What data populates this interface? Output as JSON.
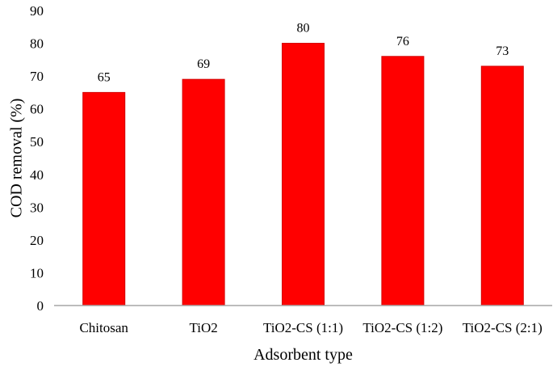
{
  "chart_data": {
    "type": "bar",
    "categories": [
      "Chitosan",
      "TiO2",
      "TiO2-CS (1:1)",
      "TiO2-CS (1:2)",
      "TiO2-CS (2:1)"
    ],
    "values": [
      65,
      69,
      80,
      76,
      73
    ],
    "data_labels": [
      "65",
      "69",
      "80",
      "76",
      "73"
    ],
    "title": "",
    "xlabel": "Adsorbent type",
    "ylabel": "COD removal (%)",
    "ylim": [
      0,
      90
    ],
    "yticks": [
      0,
      10,
      20,
      30,
      40,
      50,
      60,
      70,
      80,
      90
    ],
    "ytick_labels": [
      "0",
      "10",
      "20",
      "30",
      "40",
      "50",
      "60",
      "70",
      "80",
      "90"
    ],
    "grid": false,
    "legend": "none",
    "bar_color": "#ff0000",
    "bar_edge_color": "#d40000",
    "axis_color": "#a6a6a6"
  }
}
